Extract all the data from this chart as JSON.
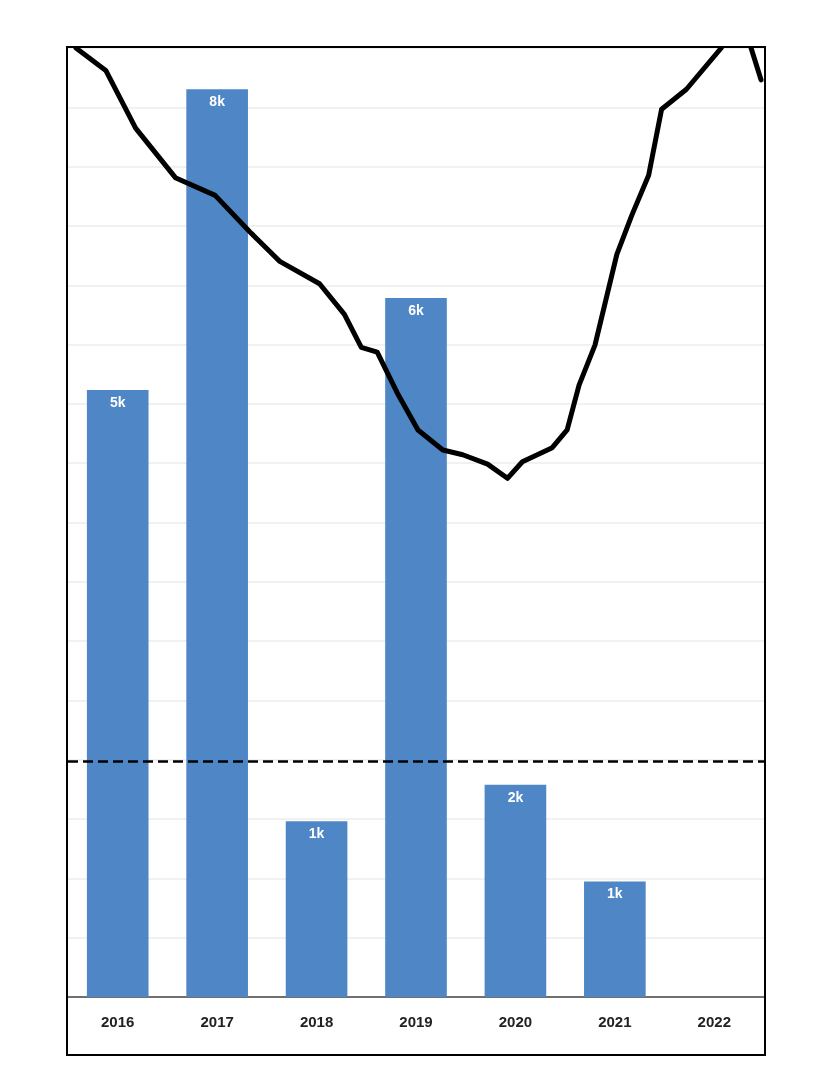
{
  "chart_data": {
    "type": "bar",
    "x": [
      2016,
      2017,
      2018,
      2019,
      2020,
      2021
    ],
    "xlim": [
      2015.5,
      2022.5
    ],
    "xticks": [
      2016,
      2017,
      2018,
      2019,
      2020,
      2021,
      2022
    ],
    "ylim": [
      0,
      8.05
    ],
    "tick_labels": "x",
    "series": [
      {
        "color": "#4f86c6",
        "values": [
          5.15,
          7.7,
          1.49,
          5.93,
          1.8,
          0.98
        ],
        "value_labels": [
          "5k",
          "8k",
          "1k",
          "6k",
          "2k",
          "1k"
        ]
      },
      {
        "type": "line",
        "color": "#000000",
        "x": [
          2015.58,
          2015.88,
          2016.18,
          2016.58,
          2016.98,
          2017.33,
          2017.63,
          2018.03,
          2018.28,
          2018.45,
          2018.61,
          2018.82,
          2019.02,
          2019.27,
          2019.47,
          2019.72,
          2019.92,
          2020.07,
          2020.37,
          2020.52,
          2020.64,
          2020.8,
          2021.02,
          2021.17,
          2021.34,
          2021.47,
          2021.72,
          2022.07,
          2022.2,
          2022.37,
          2022.47
        ],
        "values": [
          8.05,
          7.86,
          7.37,
          6.95,
          6.8,
          6.49,
          6.24,
          6.05,
          5.79,
          5.51,
          5.47,
          5.11,
          4.81,
          4.64,
          4.6,
          4.52,
          4.4,
          4.54,
          4.66,
          4.81,
          5.19,
          5.53,
          6.3,
          6.63,
          6.97,
          7.53,
          7.7,
          8.05,
          null,
          8.05,
          7.78
        ]
      }
    ],
    "ref_lines": [
      {
        "axis": "y",
        "value": 2.0,
        "color": "#000000",
        "line_style": "dashed"
      }
    ],
    "grid": "y",
    "marker": "none",
    "line_style": "solid"
  }
}
